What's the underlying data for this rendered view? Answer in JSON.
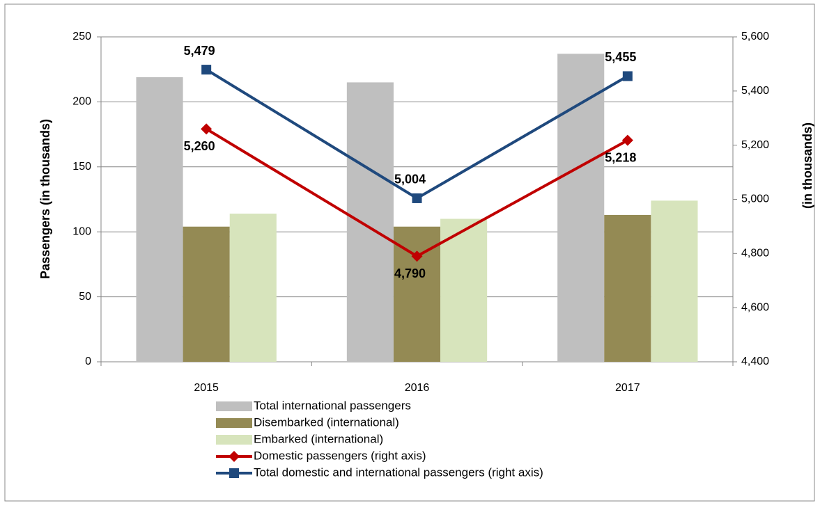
{
  "chart_data": {
    "type": "bar",
    "categories": [
      "2015",
      "2016",
      "2017"
    ],
    "ylabel": "Passengers (in thousands)",
    "y2label": "(in thousands)",
    "ylim": [
      0,
      250
    ],
    "yticks": [
      0,
      50,
      100,
      150,
      200,
      250
    ],
    "y2lim": [
      4400,
      5600
    ],
    "y2ticks": [
      {
        "value": 4400,
        "label": "4,400"
      },
      {
        "value": 4600,
        "label": "4,600"
      },
      {
        "value": 4800,
        "label": "4,800"
      },
      {
        "value": 5000,
        "label": "5,000"
      },
      {
        "value": 5200,
        "label": "5,200"
      },
      {
        "value": 5400,
        "label": "5,400"
      },
      {
        "value": 5600,
        "label": "5,600"
      }
    ],
    "grid": true,
    "series": [
      {
        "name": "Total international passengers",
        "type": "bar",
        "color": "#bfbfbf",
        "values": [
          219,
          215,
          237
        ]
      },
      {
        "name": "Disembarked (international)",
        "type": "bar",
        "color": "#948a54",
        "values": [
          104,
          104,
          113
        ]
      },
      {
        "name": "Embarked (international)",
        "type": "bar",
        "color": "#d7e4bc",
        "values": [
          114,
          110,
          124
        ]
      },
      {
        "name": "Domestic passengers  (right axis)",
        "type": "line",
        "axis": "y2",
        "marker": "diamond",
        "color": "#c00000",
        "values": [
          5260,
          4790,
          5218
        ],
        "value_labels": [
          "5,260",
          "4,790",
          "5,218"
        ]
      },
      {
        "name": "Total domestic and international passengers (right axis)",
        "type": "line",
        "axis": "y2",
        "marker": "square",
        "color": "#1f497d",
        "values": [
          5479,
          5004,
          5455
        ],
        "value_labels": [
          "5,479",
          "5,004",
          "5,455"
        ]
      }
    ]
  }
}
